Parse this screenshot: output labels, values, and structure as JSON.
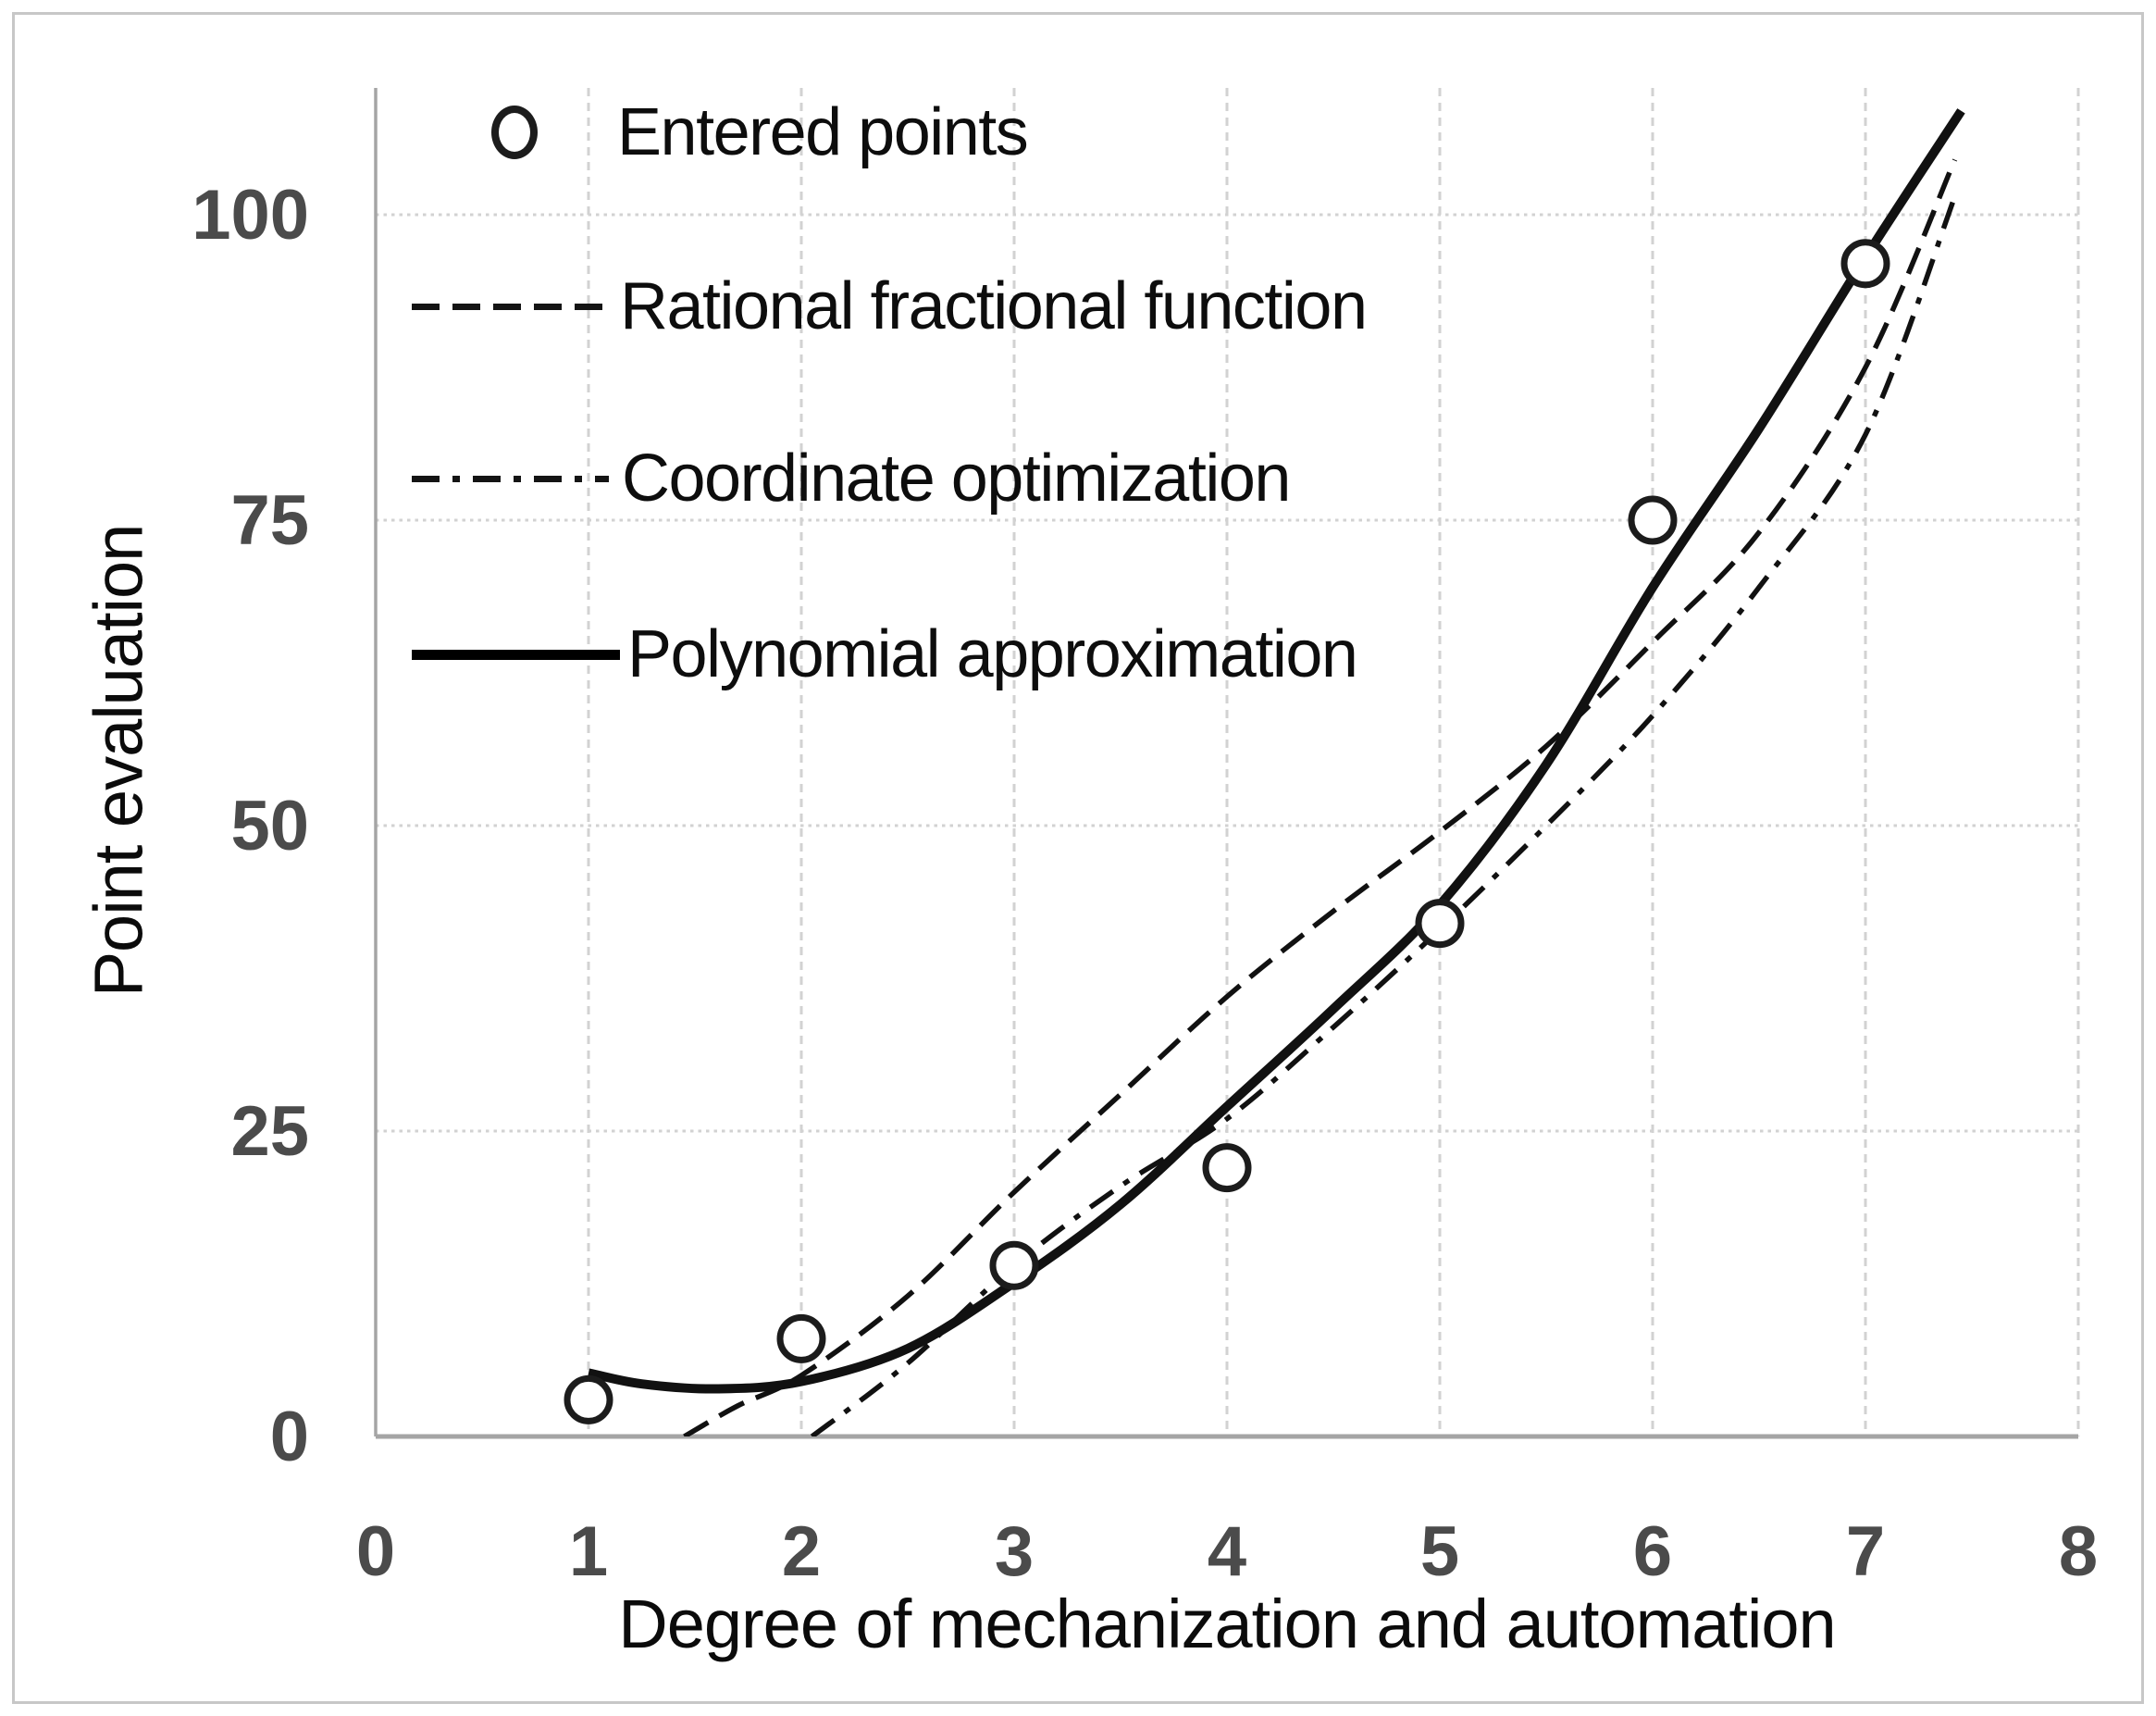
{
  "figure": {
    "background": "#ffffff",
    "border_color": "#c7c7c7",
    "curve_color": "#111111",
    "grid_color": "#d2d2d2",
    "axis_line_color": "#a5a5a5",
    "tick_label_color": "#4b4b4b"
  },
  "legend": {
    "items": [
      {
        "label": "Entered points",
        "marker": "circle"
      },
      {
        "label": "Rational fractional function",
        "marker": "dashed-line"
      },
      {
        "label": "Coordinate optimization",
        "marker": "dash-dot-line"
      },
      {
        "label": "Polynomial approximation",
        "marker": "solid-line"
      }
    ]
  },
  "axes": {
    "x_title": "Degree of mechanization and automation",
    "y_title": "Point evaluation",
    "x_ticks": [
      0,
      1,
      2,
      3,
      4,
      5,
      6,
      7,
      8
    ],
    "y_ticks": [
      0,
      25,
      50,
      75,
      100
    ]
  },
  "chart_data": {
    "type": "line",
    "title": "",
    "xlabel": "Degree of mechanization and automation",
    "ylabel": "Point evaluation",
    "xlim": [
      0,
      8
    ],
    "ylim": [
      0,
      110
    ],
    "grid": true,
    "legend_position": "inside top-left",
    "scatter_points": {
      "name": "Entered points",
      "x": [
        1,
        2,
        3,
        4,
        5,
        6,
        7
      ],
      "y": [
        3,
        8,
        14,
        22,
        42,
        75,
        96
      ]
    },
    "series": [
      {
        "name": "Rational fractional function",
        "style": "dashed",
        "x": [
          1.45,
          1.7,
          2,
          2.5,
          3,
          3.5,
          4,
          4.5,
          5,
          5.5,
          6,
          6.5,
          7,
          7.42
        ],
        "y": [
          0,
          2.5,
          5,
          11.5,
          20,
          28,
          36,
          43,
          49.5,
          56.5,
          65,
          74,
          87.5,
          104.5
        ]
      },
      {
        "name": "Coordinate optimization",
        "style": "dash-dot",
        "x": [
          2.05,
          2.5,
          3,
          3.5,
          4,
          4.5,
          5,
          5.5,
          6,
          6.5,
          7,
          7.42
        ],
        "y": [
          0,
          6,
          14,
          20.5,
          26,
          33.5,
          41.5,
          50,
          59,
          69.5,
          82,
          101.5
        ]
      },
      {
        "name": "Polynomial approximation",
        "style": "solid-thick",
        "x": [
          1,
          1.25,
          1.6,
          2,
          2.5,
          3,
          3.5,
          4,
          4.5,
          5,
          5.5,
          6,
          6.5,
          7,
          7.45
        ],
        "y": [
          5.2,
          4.3,
          3.9,
          4.5,
          7.2,
          12.6,
          19,
          27,
          35,
          43.5,
          55,
          69.5,
          82.5,
          96.5,
          108.5
        ]
      }
    ]
  }
}
